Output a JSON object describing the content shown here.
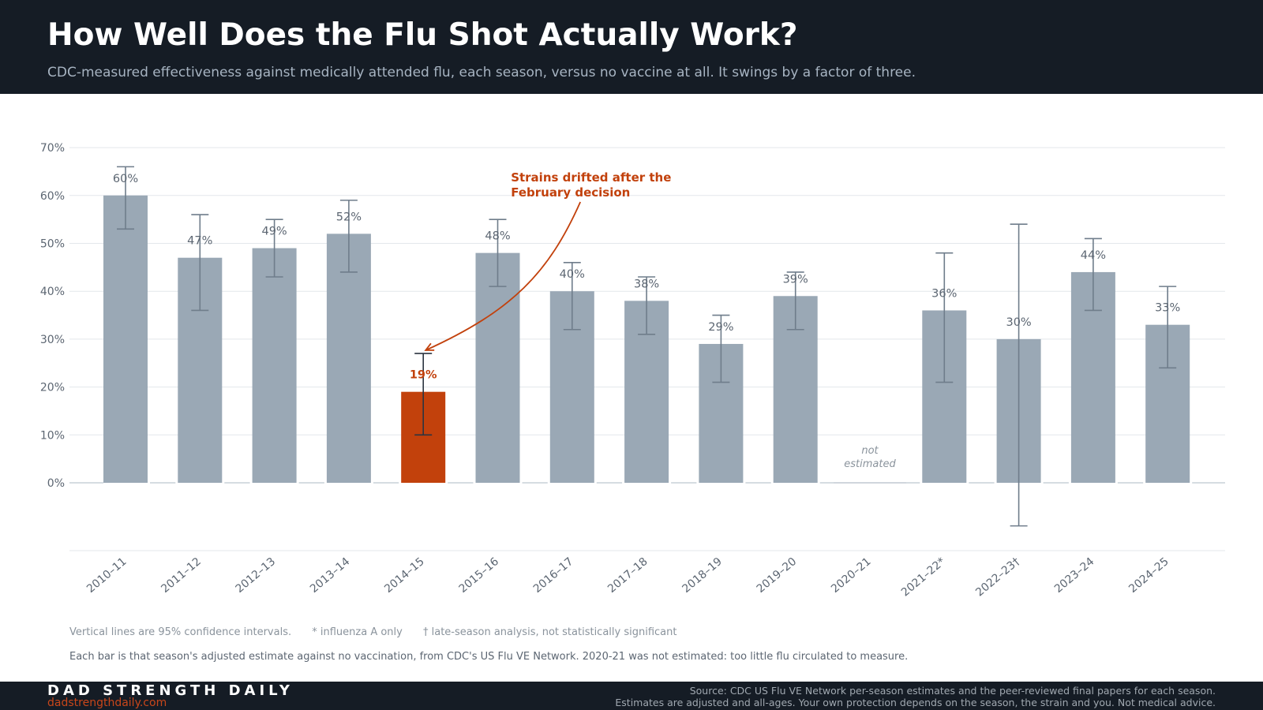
{
  "header": {
    "title": "How Well Does the Flu Shot Actually Work?",
    "subtitle": "CDC-measured effectiveness against medically attended flu, each season, versus no vaccine at all. It swings by a factor of three."
  },
  "colors": {
    "bar": "#9aa8b5",
    "highlight": "#c2410c",
    "header_bg": "#151c25"
  },
  "chart_data": {
    "type": "bar",
    "categories": [
      "2010–11",
      "2011–12",
      "2012–13",
      "2013–14",
      "2014–15",
      "2015–16",
      "2016–17",
      "2017–18",
      "2018–19",
      "2019–20",
      "2020–21",
      "2021–22*",
      "2022–23†",
      "2023–24",
      "2024–25"
    ],
    "values": [
      60,
      47,
      49,
      52,
      19,
      48,
      40,
      38,
      29,
      39,
      null,
      36,
      30,
      44,
      33
    ],
    "ci_low": [
      53,
      36,
      43,
      44,
      10,
      41,
      32,
      31,
      21,
      32,
      null,
      21,
      -9,
      36,
      24
    ],
    "ci_high": [
      66,
      56,
      55,
      59,
      27,
      55,
      46,
      43,
      35,
      44,
      null,
      48,
      54,
      51,
      41
    ],
    "value_labels": [
      "60%",
      "47%",
      "49%",
      "52%",
      "19%",
      "48%",
      "40%",
      "38%",
      "29%",
      "39%",
      "",
      "36%",
      "30%",
      "44%",
      "33%"
    ],
    "highlight_index": 4,
    "missing_label": [
      "not",
      "estimated"
    ],
    "annotation": {
      "lines": [
        "Strains drifted after the",
        "February decision"
      ],
      "target_index": 4
    },
    "ylim": [
      -14,
      70
    ],
    "yticks": [
      0,
      10,
      20,
      30,
      40,
      50,
      60,
      70
    ],
    "ytick_labels": [
      "0%",
      "10%",
      "20%",
      "30%",
      "40%",
      "50%",
      "60%",
      "70%"
    ],
    "grid": true
  },
  "notes": {
    "ci": "Vertical lines are 95% confidence intervals.",
    "star": "* influenza A only",
    "dagger": "† late-season analysis, not statistically significant",
    "method": "Each bar is that season's adjusted estimate against no vaccination, from CDC's US Flu VE Network. 2020-21 was not estimated: too little flu circulated to measure."
  },
  "footer": {
    "brand": "DAD STRENGTH DAILY",
    "site": "dadstrengthdaily.com",
    "source_line1": "Source: CDC US Flu VE Network per-season estimates and the peer-reviewed final papers for each season.",
    "source_line2": "Estimates are adjusted and all-ages. Your own protection depends on the season, the strain and you. Not medical advice."
  }
}
